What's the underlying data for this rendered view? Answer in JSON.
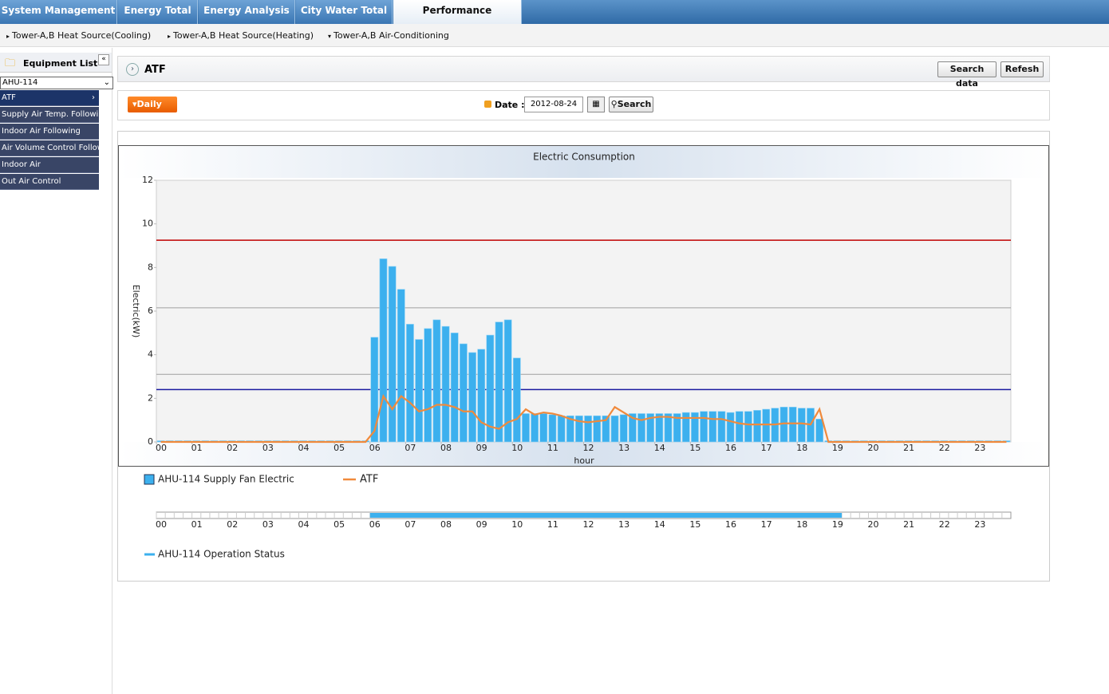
{
  "tabs": [
    "System Management",
    "Energy Total",
    "Energy Analysis",
    "City Water Total",
    "Performance Evaluation"
  ],
  "subnav": [
    "Tower-A,B Heat Source(Cooling)",
    "Tower-A,B Heat Source(Heating)",
    "Tower-A,B Air-Conditioning"
  ],
  "sidebar": {
    "title": "Equipment List",
    "select": "AHU-114",
    "items": [
      "ATF",
      "Supply Air Temp. Following",
      "Indoor Air Following",
      "Air Volume Control Following",
      "Indoor Air",
      "Out Air Control"
    ]
  },
  "header": {
    "title": "ATF",
    "buttons": [
      "Search data",
      "Refesh"
    ]
  },
  "filter": {
    "period": "Daily",
    "date_label": "Date :",
    "date": "2012-08-24",
    "search": "Search"
  },
  "chart_data": {
    "type": "bar-line",
    "title": "Electric Consumption",
    "y_label": "Electric(kW)",
    "x_label": "hour",
    "xlim": [
      0,
      24
    ],
    "ylim": [
      0,
      12
    ],
    "yticks": [
      0,
      2,
      4,
      6,
      8,
      10,
      12
    ],
    "xticks": [
      {
        "value": 0,
        "label": "00"
      },
      {
        "value": 1,
        "label": "01"
      },
      {
        "value": 2,
        "label": "02"
      },
      {
        "value": 3,
        "label": "03"
      },
      {
        "value": 4,
        "label": "04"
      },
      {
        "value": 5,
        "label": "05"
      },
      {
        "value": 6,
        "label": "06"
      },
      {
        "value": 7,
        "label": "07"
      },
      {
        "value": 8,
        "label": "08"
      },
      {
        "value": 9,
        "label": "09"
      },
      {
        "value": 10,
        "label": "10"
      },
      {
        "value": 11,
        "label": "11"
      },
      {
        "value": 12,
        "label": "12"
      },
      {
        "value": 13,
        "label": "13"
      },
      {
        "value": 14,
        "label": "14"
      },
      {
        "value": 15,
        "label": "15"
      },
      {
        "value": 16,
        "label": "16"
      },
      {
        "value": 17,
        "label": "17"
      },
      {
        "value": 18,
        "label": "18"
      },
      {
        "value": 19,
        "label": "19"
      },
      {
        "value": 20,
        "label": "20"
      },
      {
        "value": 21,
        "label": "21"
      },
      {
        "value": 22,
        "label": "22"
      },
      {
        "value": 23,
        "label": "23"
      }
    ],
    "x": [
      0,
      0.25,
      0.5,
      0.75,
      1,
      1.25,
      1.5,
      1.75,
      2,
      2.25,
      2.5,
      2.75,
      3,
      3.25,
      3.5,
      3.75,
      4,
      4.25,
      4.5,
      4.75,
      5,
      5.25,
      5.5,
      5.75,
      6,
      6.25,
      6.5,
      6.75,
      7,
      7.25,
      7.5,
      7.75,
      8,
      8.25,
      8.5,
      8.75,
      9,
      9.25,
      9.5,
      9.75,
      10,
      10.25,
      10.5,
      10.75,
      11,
      11.25,
      11.5,
      11.75,
      12,
      12.25,
      12.5,
      12.75,
      13,
      13.25,
      13.5,
      13.75,
      14,
      14.25,
      14.5,
      14.75,
      15,
      15.25,
      15.5,
      15.75,
      16,
      16.25,
      16.5,
      16.75,
      17,
      17.25,
      17.5,
      17.75,
      18,
      18.25,
      18.5,
      18.75,
      19,
      19.25,
      19.5,
      19.75,
      20,
      20.25,
      20.5,
      20.75,
      21,
      21.25,
      21.5,
      21.75,
      22,
      22.25,
      22.5,
      22.75,
      23,
      23.25,
      23.5,
      23.75
    ],
    "series": [
      {
        "name": "AHU-114 Supply Fan Electric",
        "kind": "bar",
        "color": "#3cb0ee",
        "values": [
          0,
          0,
          0,
          0,
          0,
          0,
          0,
          0,
          0,
          0,
          0,
          0,
          0,
          0,
          0,
          0,
          0,
          0,
          0,
          0,
          0,
          0,
          0,
          0,
          4.8,
          8.4,
          8.05,
          7.0,
          5.4,
          4.7,
          5.2,
          5.6,
          5.3,
          5.0,
          4.5,
          4.1,
          4.25,
          4.9,
          5.5,
          5.6,
          3.85,
          1.3,
          1.3,
          1.3,
          1.25,
          1.2,
          1.2,
          1.2,
          1.2,
          1.2,
          1.2,
          1.2,
          1.25,
          1.3,
          1.3,
          1.3,
          1.3,
          1.3,
          1.3,
          1.35,
          1.35,
          1.4,
          1.4,
          1.4,
          1.35,
          1.4,
          1.4,
          1.45,
          1.5,
          1.55,
          1.6,
          1.6,
          1.55,
          1.55,
          1.05,
          0,
          0,
          0,
          0,
          0,
          0,
          0,
          0,
          0,
          0,
          0,
          0,
          0,
          0,
          0,
          0,
          0,
          0,
          0,
          0,
          0
        ]
      },
      {
        "name": "ATF",
        "kind": "line",
        "color": "#f08a3c",
        "values": [
          0,
          0,
          0,
          0,
          0,
          0,
          0,
          0,
          0,
          0,
          0,
          0,
          0,
          0,
          0,
          0,
          0,
          0,
          0,
          0,
          0,
          0,
          0,
          0,
          0.5,
          2.1,
          1.5,
          2.1,
          1.8,
          1.4,
          1.5,
          1.7,
          1.7,
          1.6,
          1.4,
          1.4,
          0.9,
          0.7,
          0.6,
          0.9,
          1.05,
          1.5,
          1.25,
          1.35,
          1.3,
          1.2,
          1.05,
          0.95,
          0.9,
          0.95,
          1.0,
          1.6,
          1.35,
          1.1,
          1.0,
          1.1,
          1.15,
          1.15,
          1.1,
          1.1,
          1.1,
          1.1,
          1.05,
          1.05,
          0.95,
          0.85,
          0.8,
          0.8,
          0.8,
          0.8,
          0.85,
          0.85,
          0.85,
          0.8,
          1.5,
          0,
          0,
          0,
          0,
          0,
          0,
          0,
          0,
          0,
          0,
          0,
          0,
          0,
          0,
          0,
          0,
          0,
          0,
          0,
          0,
          0
        ]
      }
    ],
    "reference_lines": [
      {
        "value": 9.25,
        "color": "#c00000"
      },
      {
        "value": 6.15,
        "color": "#a0a0a0"
      },
      {
        "value": 3.1,
        "color": "#a0a0a0"
      },
      {
        "value": 2.4,
        "color": "#1a1aa0"
      }
    ],
    "status": {
      "name": "AHU-114 Operation Status",
      "color": "#3cb0ee",
      "start": 6,
      "end": 19.25
    }
  }
}
